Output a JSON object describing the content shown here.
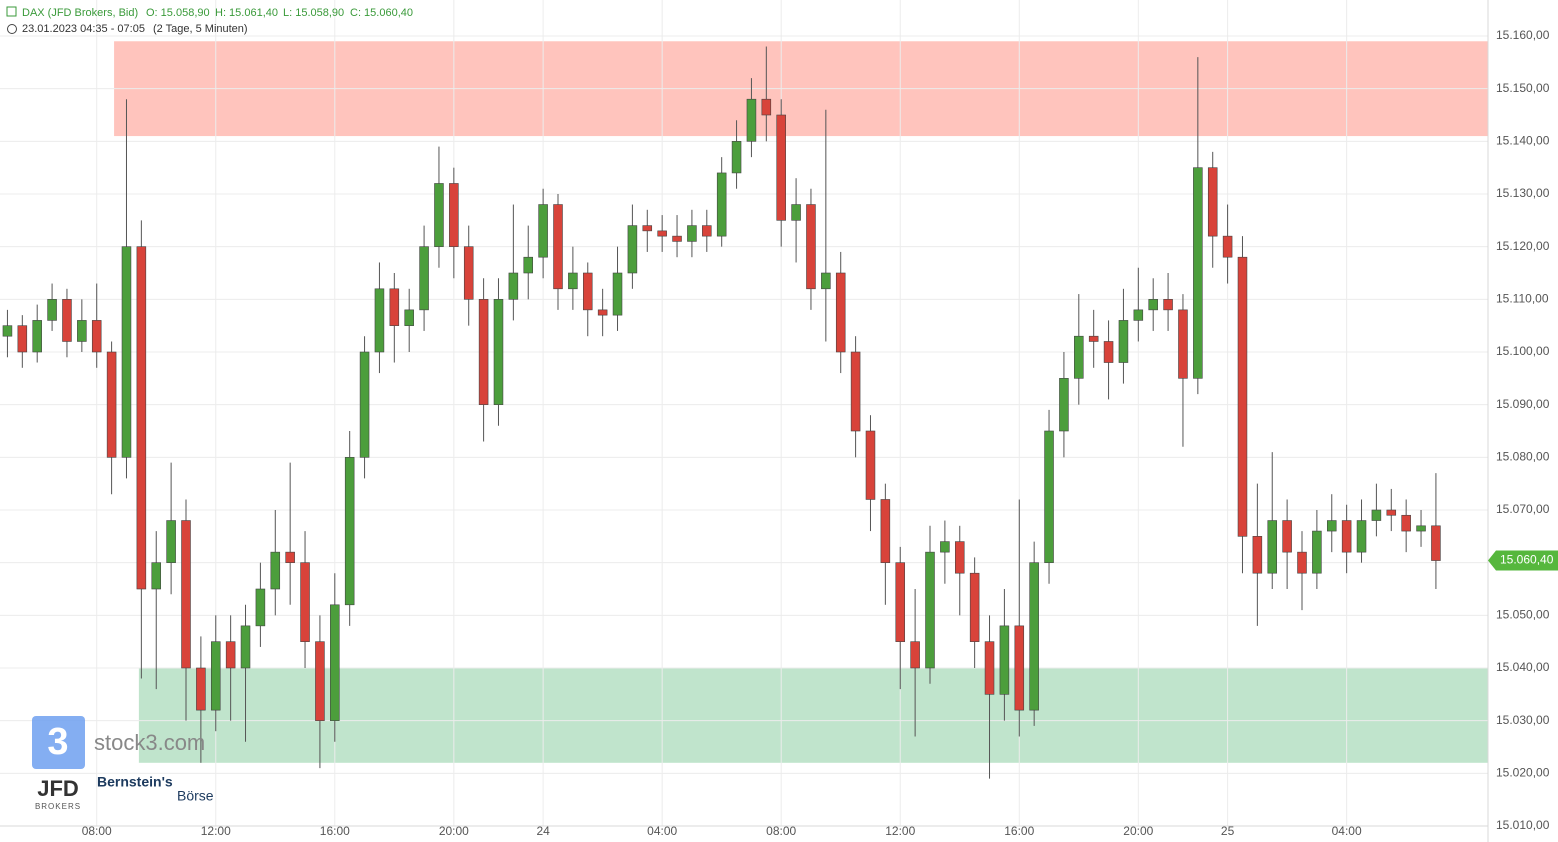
{
  "chart_data": {
    "type": "candlestick",
    "header": {
      "symbol": "DAX (JFD Brokers, Bid)",
      "open": "O: 15.058,90",
      "high": "H: 15.061,40",
      "low": "L: 15.058,90",
      "close": "C: 15.060,40",
      "range": "23.01.2023 04:35 - 07:05",
      "period": "(2 Tage, 5 Minuten)"
    },
    "branding": {
      "site": "stock3.com",
      "broker": "JFD",
      "broker_sub": "BROKERS",
      "partner1": "Bernstein's",
      "partner2": "Börse"
    },
    "up_color": "#4c9e3c",
    "down_color": "#d8433a",
    "x": [
      3,
      9,
      15,
      21,
      27,
      33,
      39,
      45,
      51,
      57,
      63,
      69,
      75,
      81,
      87,
      93,
      99,
      105,
      111,
      117,
      123,
      129,
      135,
      141,
      147,
      153,
      159,
      165,
      171,
      177,
      183,
      189,
      195,
      201,
      207,
      213,
      219,
      225,
      231,
      237,
      243,
      249,
      255,
      261,
      267,
      273,
      279,
      285,
      291,
      297,
      303,
      309,
      315,
      321,
      327,
      333,
      339,
      345,
      351,
      357,
      363,
      369,
      375,
      381,
      387,
      393,
      399,
      405,
      411,
      417,
      423,
      429,
      435,
      441,
      447,
      453,
      459,
      465,
      471,
      477,
      483,
      489,
      495,
      501,
      507,
      513,
      519,
      525,
      531,
      537,
      543,
      549,
      555,
      561,
      567,
      573,
      579
    ],
    "open": [
      15103,
      15105,
      15100,
      15106,
      15110,
      15102,
      15106,
      15100,
      15080,
      15120,
      15055,
      15060,
      15068,
      15040,
      15032,
      15045,
      15040,
      15048,
      15055,
      15062,
      15060,
      15045,
      15030,
      15052,
      15080,
      15100,
      15112,
      15105,
      15108,
      15120,
      15132,
      15120,
      15110,
      15090,
      15110,
      15115,
      15118,
      15128,
      15112,
      15115,
      15108,
      15107,
      15115,
      15124,
      15123,
      15122,
      15121,
      15124,
      15122,
      15134,
      15140,
      15148,
      15145,
      15125,
      15128,
      15112,
      15115,
      15100,
      15085,
      15072,
      15060,
      15045,
      15040,
      15062,
      15064,
      15058,
      15045,
      15035,
      15048,
      15032,
      15060,
      15085,
      15095,
      15103,
      15102,
      15098,
      15106,
      15108,
      15110,
      15108,
      15095,
      15135,
      15122,
      15118,
      15065,
      15058,
      15068,
      15062,
      15058,
      15066,
      15068,
      15062,
      15068,
      15070,
      15069,
      15066,
      15067
    ],
    "high": [
      15108,
      15107,
      15109,
      15113,
      15112,
      15110,
      15113,
      15102,
      15148,
      15125,
      15066,
      15079,
      15072,
      15046,
      15050,
      15050,
      15052,
      15060,
      15070,
      15079,
      15066,
      15050,
      15058,
      15085,
      15103,
      15117,
      15115,
      15112,
      15124,
      15139,
      15135,
      15124,
      15114,
      15114,
      15128,
      15124,
      15131,
      15130,
      15120,
      15117,
      15112,
      15120,
      15128,
      15127,
      15126,
      15126,
      15127,
      15127,
      15137,
      15144,
      15152,
      15158,
      15148,
      15133,
      15131,
      15146,
      15119,
      15103,
      15088,
      15075,
      15063,
      15055,
      15067,
      15068,
      15067,
      15061,
      15050,
      15055,
      15072,
      15064,
      15089,
      15100,
      15111,
      15108,
      15106,
      15112,
      15116,
      15114,
      15115,
      15111,
      15156,
      15138,
      15128,
      15122,
      15075,
      15081,
      15072,
      15066,
      15070,
      15073,
      15071,
      15072,
      15075,
      15074,
      15072,
      15070,
      15077
    ],
    "low": [
      15099,
      15097,
      15098,
      15104,
      15099,
      15100,
      15097,
      15073,
      15076,
      15038,
      15036,
      15054,
      15030,
      15022,
      15028,
      15030,
      15026,
      15044,
      15050,
      15052,
      15040,
      15021,
      15026,
      15048,
      15076,
      15096,
      15098,
      15100,
      15104,
      15116,
      15114,
      15105,
      15083,
      15086,
      15106,
      15110,
      15114,
      15108,
      15108,
      15103,
      15103,
      15104,
      15112,
      15119,
      15119,
      15118,
      15118,
      15119,
      15120,
      15131,
      15137,
      15140,
      15120,
      15117,
      15108,
      15102,
      15096,
      15080,
      15066,
      15052,
      15036,
      15027,
      15037,
      15056,
      15050,
      15040,
      15019,
      15030,
      15027,
      15029,
      15056,
      15080,
      15090,
      15097,
      15091,
      15094,
      15102,
      15104,
      15104,
      15082,
      15092,
      15116,
      15113,
      15058,
      15048,
      15055,
      15055,
      15051,
      15055,
      15062,
      15058,
      15060,
      15065,
      15066,
      15062,
      15063,
      15055
    ],
    "close": [
      15105,
      15100,
      15106,
      15110,
      15102,
      15106,
      15100,
      15080,
      15120,
      15055,
      15060,
      15068,
      15040,
      15032,
      15045,
      15040,
      15048,
      15055,
      15062,
      15060,
      15045,
      15030,
      15052,
      15080,
      15100,
      15112,
      15105,
      15108,
      15120,
      15132,
      15120,
      15110,
      15090,
      15110,
      15115,
      15118,
      15128,
      15112,
      15115,
      15108,
      15107,
      15115,
      15124,
      15123,
      15122,
      15121,
      15124,
      15122,
      15134,
      15140,
      15148,
      15145,
      15125,
      15128,
      15112,
      15115,
      15100,
      15085,
      15072,
      15060,
      15045,
      15040,
      15062,
      15064,
      15058,
      15045,
      15035,
      15048,
      15032,
      15060,
      15085,
      15095,
      15103,
      15102,
      15098,
      15106,
      15108,
      15110,
      15108,
      15095,
      15135,
      15122,
      15118,
      15065,
      15058,
      15068,
      15062,
      15058,
      15066,
      15068,
      15062,
      15068,
      15070,
      15069,
      15066,
      15067,
      15060.4
    ],
    "zones": [
      {
        "from": 15141,
        "to": 15159,
        "x_start": 46,
        "color": "#ffc4bd"
      },
      {
        "from": 15022,
        "to": 15040,
        "x_start": 56,
        "color": "#c0e4cc"
      }
    ],
    "last_price": {
      "value": 15060.4,
      "label": "15.060,40",
      "color": "#56b73d"
    },
    "xlim": [
      0,
      600
    ],
    "xticks": [
      {
        "value": 39,
        "label": "08:00"
      },
      {
        "value": 87,
        "label": "12:00"
      },
      {
        "value": 135,
        "label": "16:00"
      },
      {
        "value": 183,
        "label": "20:00"
      },
      {
        "value": 219,
        "label": "24"
      },
      {
        "value": 267,
        "label": "04:00"
      },
      {
        "value": 315,
        "label": "08:00"
      },
      {
        "value": 363,
        "label": "12:00"
      },
      {
        "value": 411,
        "label": "16:00"
      },
      {
        "value": 459,
        "label": "20:00"
      },
      {
        "value": 495,
        "label": "25"
      },
      {
        "value": 543,
        "label": "04:00"
      }
    ],
    "ylim": [
      15010,
      15160
    ],
    "yticks": [
      {
        "value": 15010,
        "label": "15.010,00"
      },
      {
        "value": 15020,
        "label": "15.020,00"
      },
      {
        "value": 15030,
        "label": "15.030,00"
      },
      {
        "value": 15040,
        "label": "15.040,00"
      },
      {
        "value": 15050,
        "label": "15.050,00"
      },
      {
        "value": 15060,
        "label": "15.060,00"
      },
      {
        "value": 15070,
        "label": "15.070,00"
      },
      {
        "value": 15080,
        "label": "15.080,00"
      },
      {
        "value": 15090,
        "label": "15.090,00"
      },
      {
        "value": 15100,
        "label": "15.100,00"
      },
      {
        "value": 15110,
        "label": "15.110,00"
      },
      {
        "value": 15120,
        "label": "15.120,00"
      },
      {
        "value": 15130,
        "label": "15.130,00"
      },
      {
        "value": 15140,
        "label": "15.140,00"
      },
      {
        "value": 15150,
        "label": "15.150,00"
      },
      {
        "value": 15160,
        "label": "15.160,00"
      }
    ],
    "grid": true
  }
}
